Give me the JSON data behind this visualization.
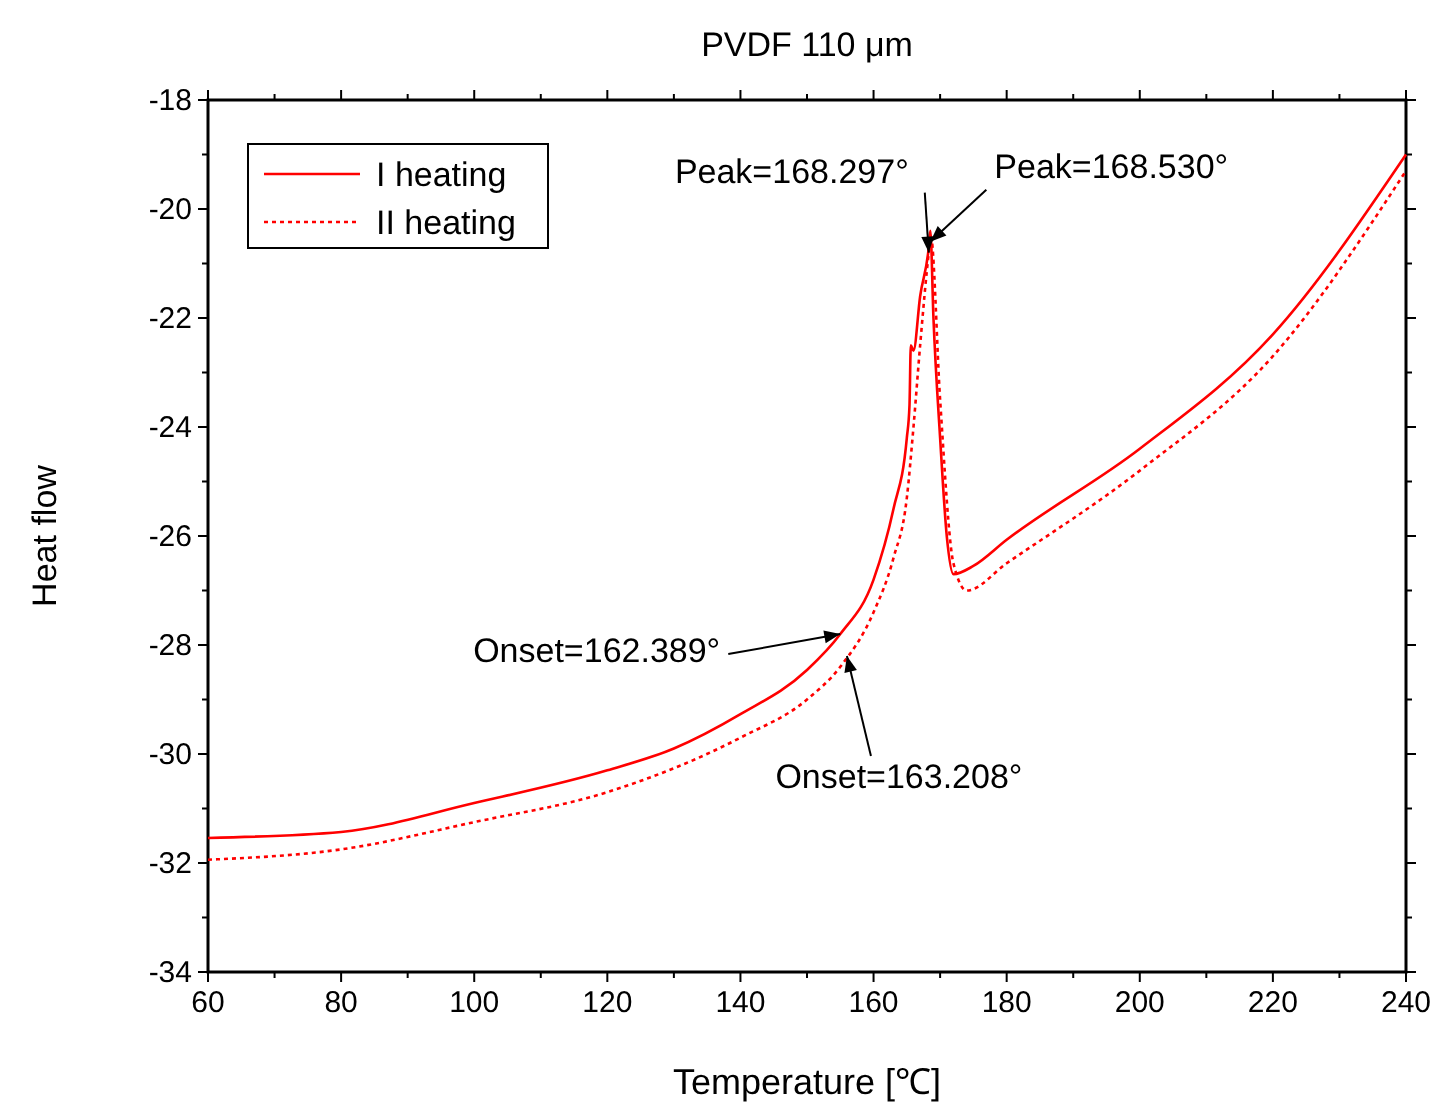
{
  "chart_data": {
    "type": "line",
    "title": "PVDF 110 μm",
    "xlabel": "Temperature [℃]",
    "ylabel": "Heat flow",
    "xlim": [
      60,
      240
    ],
    "ylim": [
      -34,
      -18
    ],
    "xticks": [
      60,
      80,
      100,
      120,
      140,
      160,
      180,
      200,
      220,
      240
    ],
    "yticks": [
      -34,
      -32,
      -30,
      -28,
      -26,
      -24,
      -22,
      -20,
      -18
    ],
    "grid": false,
    "legend": "top left",
    "marker": "none",
    "series": [
      {
        "name": "I heating",
        "color": "#ff0000",
        "line_style": "solid",
        "x": [
          60,
          80,
          100,
          120,
          130,
          140,
          150,
          155,
          160,
          163,
          165,
          165.4,
          165.6,
          166,
          167,
          168.3,
          168.53,
          169,
          170,
          171,
          172,
          175,
          180,
          200,
          220,
          240
        ],
        "values": [
          -31.54,
          -31.43,
          -30.9,
          -30.3,
          -29.9,
          -29.27,
          -28.46,
          -27.8,
          -26.8,
          -25.5,
          -24.2,
          -23.6,
          -22.5,
          -22.6,
          -21.6,
          -20.7,
          -20.4,
          -22,
          -24.2,
          -26,
          -26.7,
          -26.55,
          -26.07,
          -24.4,
          -22.3,
          -19
        ]
      },
      {
        "name": "II heating",
        "color": "#ff0000",
        "line_style": "dotted",
        "x": [
          60,
          80,
          100,
          120,
          140,
          150,
          155,
          160,
          163,
          165,
          166,
          167,
          168.3,
          168.6,
          170,
          172,
          174,
          180,
          200,
          220,
          240
        ],
        "values": [
          -31.94,
          -31.75,
          -31.25,
          -30.7,
          -29.7,
          -29,
          -28.4,
          -27.4,
          -26.4,
          -25.3,
          -24,
          -22.5,
          -20.8,
          -20.5,
          -23.5,
          -26.5,
          -27,
          -26.5,
          -24.8,
          -22.7,
          -19.3
        ]
      }
    ],
    "annotations": [
      {
        "text": "Peak=168.297°",
        "x": 168.297,
        "y": -20.8
      },
      {
        "text": "Peak=168.530°",
        "x": 168.53,
        "y": -20.6
      },
      {
        "text": "Onset=162.389°",
        "x": 155,
        "y": -27.8
      },
      {
        "text": "Onset=163.208°",
        "x": 156,
        "y": -28.2
      }
    ]
  }
}
